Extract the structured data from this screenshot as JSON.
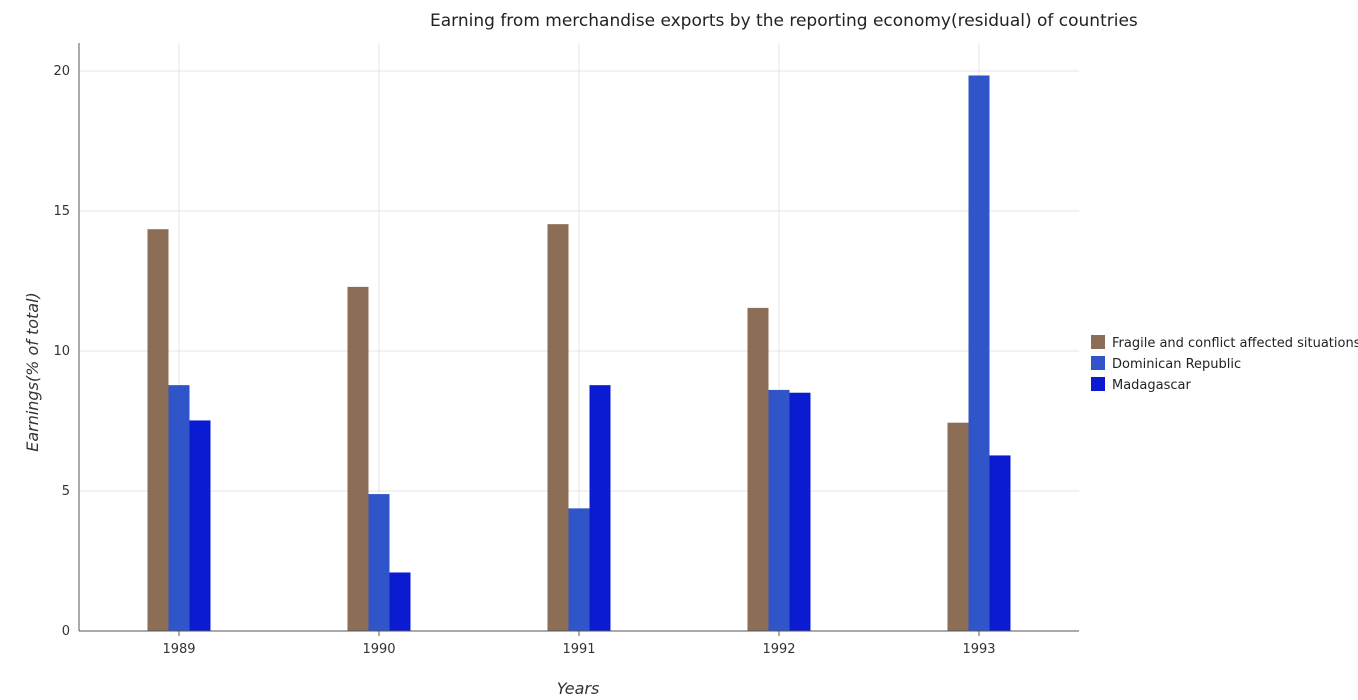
{
  "chart_data": {
    "type": "bar",
    "title": "Earning from merchandise exports by the reporting economy(residual) of countries",
    "xlabel": "Years",
    "ylabel": "Earnings(% of total)",
    "categories": [
      "1989",
      "1990",
      "1991",
      "1992",
      "1993"
    ],
    "ylim": [
      0,
      21
    ],
    "yticks": [
      0,
      5,
      10,
      15,
      20
    ],
    "grid": true,
    "legend_position": "right",
    "series": [
      {
        "name": "Fragile and conflict affected situations",
        "color": "#8c6d56",
        "values": [
          14.35,
          12.29,
          14.53,
          11.54,
          7.44
        ]
      },
      {
        "name": "Dominican Republic",
        "color": "#2f55c8",
        "values": [
          8.78,
          4.89,
          4.38,
          8.61,
          19.84
        ]
      },
      {
        "name": "Madagascar",
        "color": "#0b1bd1",
        "values": [
          7.52,
          2.09,
          8.78,
          8.51,
          6.27
        ]
      }
    ]
  }
}
